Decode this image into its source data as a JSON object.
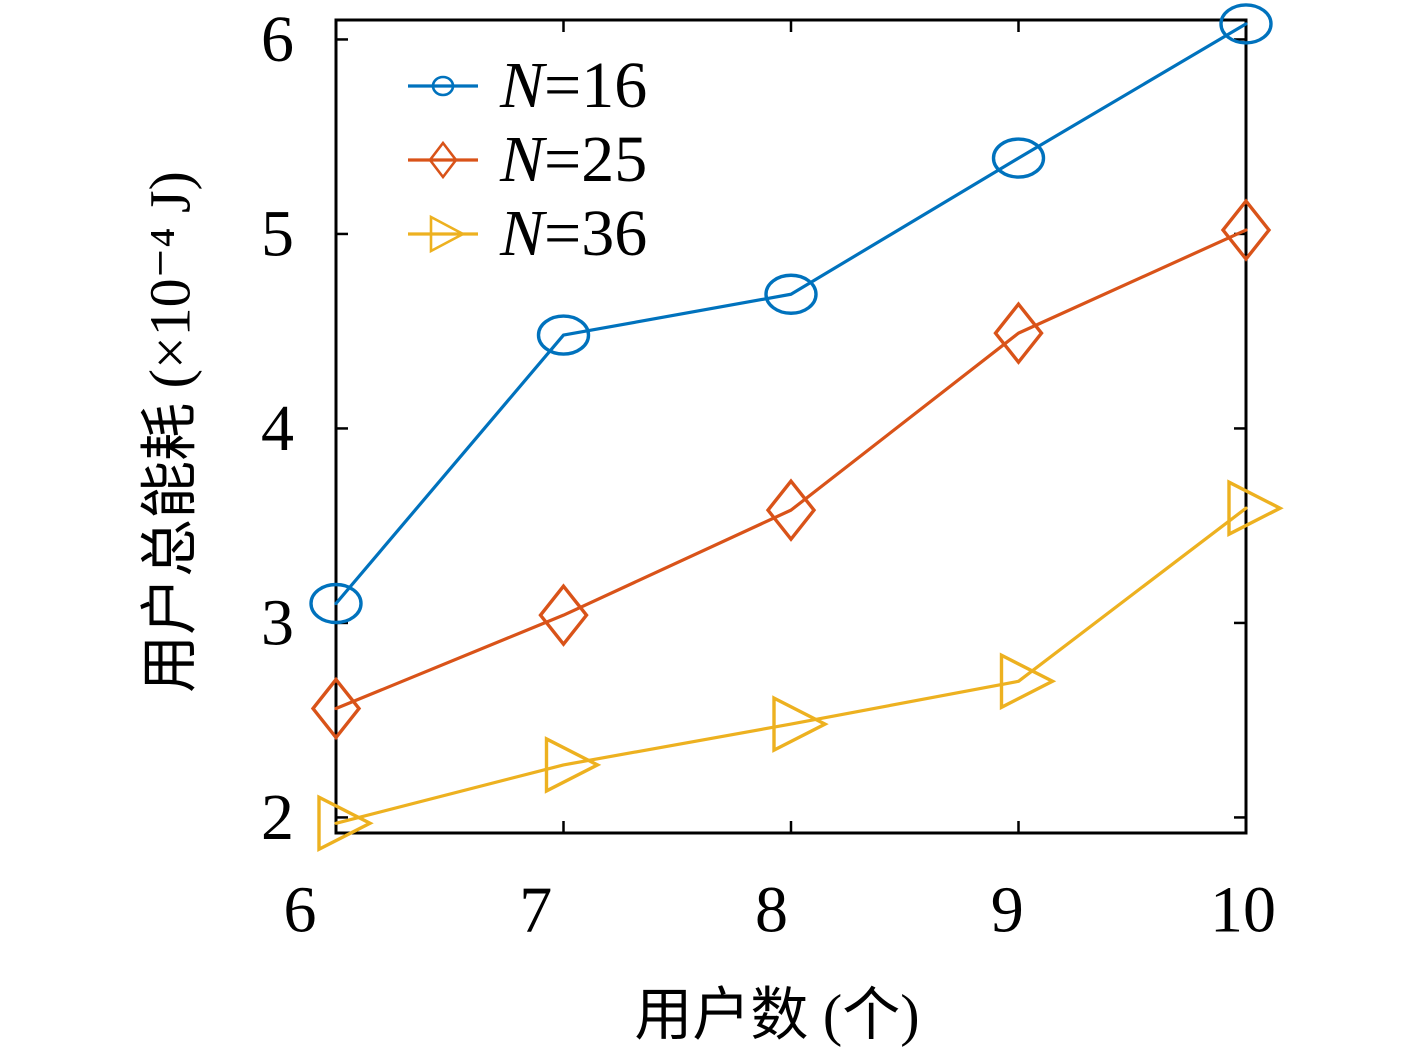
{
  "chart_data": {
    "type": "line",
    "xlabel": "用户数 (个)",
    "ylabel": "用户总能耗 (×10⁻⁴ J)",
    "x": [
      6,
      7,
      8,
      9,
      10
    ],
    "xlim": [
      6,
      10
    ],
    "ylim": [
      1.92,
      6.1
    ],
    "xticks": [
      6,
      7,
      8,
      9,
      10
    ],
    "xtick_labels": [
      "6",
      "7",
      "8",
      "9",
      "10"
    ],
    "yticks": [
      2,
      3,
      4,
      5,
      6
    ],
    "ytick_labels": [
      "2",
      "3",
      "4",
      "5",
      "6"
    ],
    "grid": false,
    "legend_position": "top-left",
    "series": [
      {
        "name": "N=16",
        "marker": "circle",
        "color": "#0072BD",
        "values": [
          3.1,
          4.48,
          4.69,
          5.39,
          6.08
        ]
      },
      {
        "name": "N=25",
        "marker": "diamond",
        "color": "#D95319",
        "values": [
          2.56,
          3.04,
          3.58,
          4.49,
          5.02
        ]
      },
      {
        "name": "N=36",
        "marker": "triangle-right",
        "color": "#EDB120",
        "values": [
          1.97,
          2.27,
          2.48,
          2.7,
          3.59
        ]
      }
    ]
  }
}
